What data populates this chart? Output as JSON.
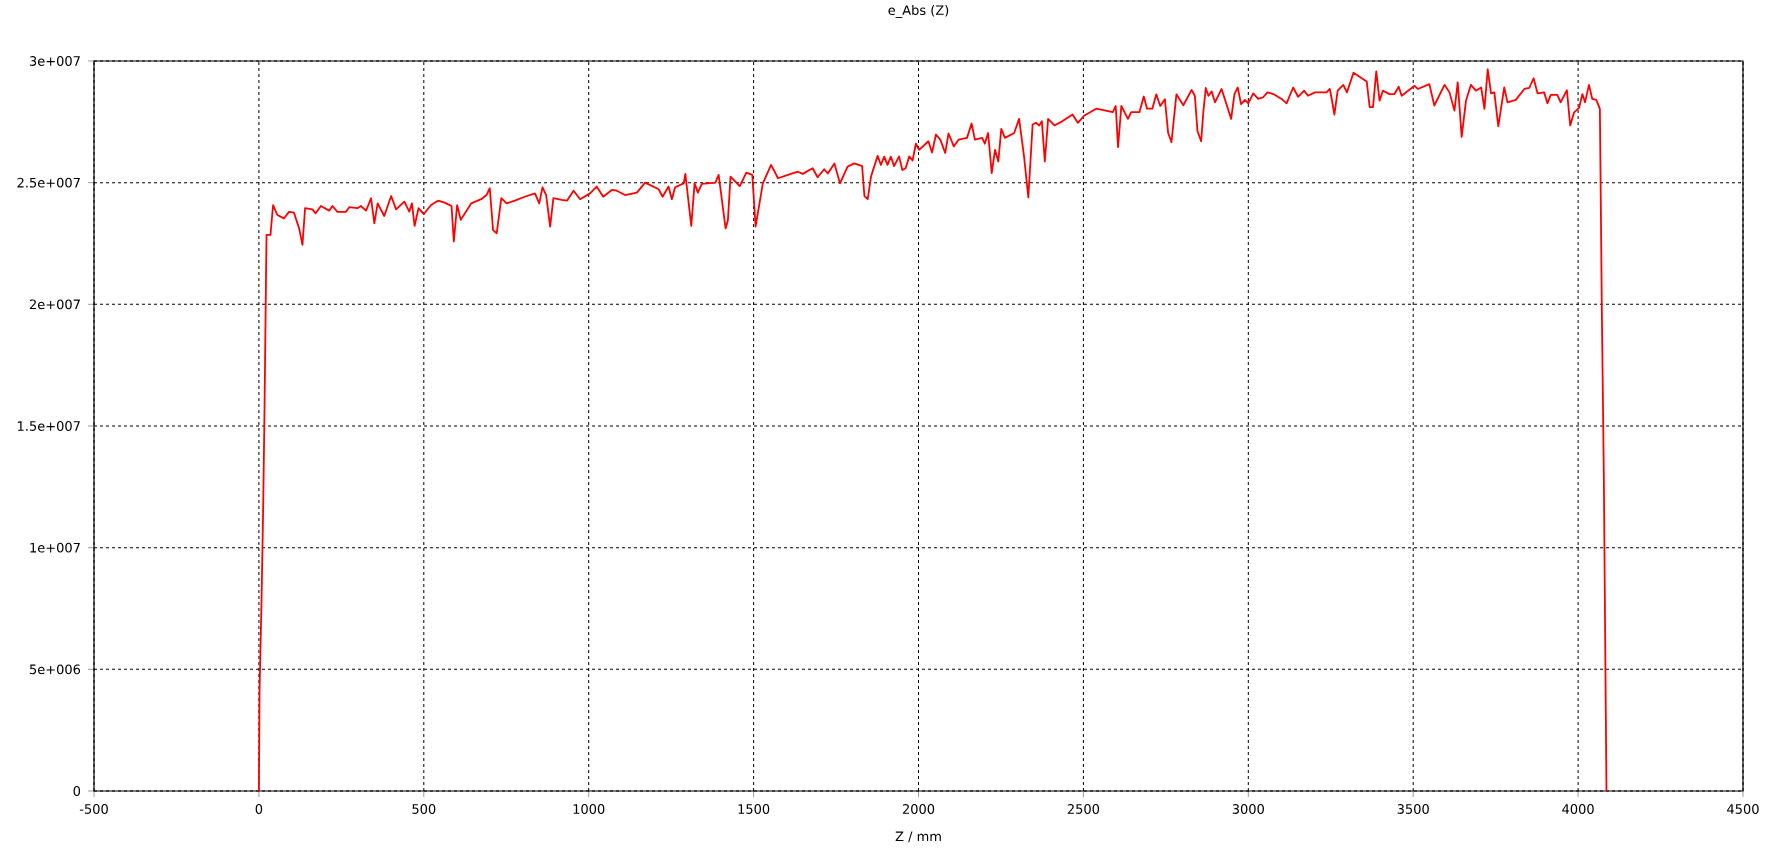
{
  "chart_data": {
    "type": "line",
    "title": "e_Abs (Z)",
    "xlabel": "Z / mm",
    "x": [
      0,
      2,
      8,
      13,
      17,
      21,
      23,
      35,
      43,
      56,
      76,
      91,
      106,
      122,
      132,
      140,
      162,
      172,
      188,
      213,
      223,
      238,
      264,
      274,
      299,
      309,
      325,
      340,
      350,
      360,
      380,
      401,
      416,
      441,
      456,
      464,
      472,
      484,
      500,
      522,
      543,
      563,
      584,
      591,
      601,
      612,
      644,
      674,
      690,
      700,
      710,
      721,
      735,
      751,
      776,
      806,
      837,
      850,
      860,
      871,
      883,
      893,
      918,
      934,
      954,
      974,
      1004,
      1024,
      1044,
      1070,
      1085,
      1110,
      1146,
      1171,
      1212,
      1224,
      1242,
      1252,
      1262,
      1288,
      1293,
      1311,
      1321,
      1331,
      1343,
      1384,
      1394,
      1415,
      1422,
      1430,
      1458,
      1478,
      1496,
      1506,
      1528,
      1553,
      1574,
      1604,
      1634,
      1649,
      1679,
      1694,
      1714,
      1725,
      1745,
      1762,
      1785,
      1805,
      1829,
      1836,
      1846,
      1856,
      1876,
      1886,
      1896,
      1906,
      1916,
      1926,
      1941,
      1951,
      1961,
      1972,
      1982,
      1992,
      2002,
      2030,
      2041,
      2053,
      2066,
      2081,
      2091,
      2107,
      2122,
      2147,
      2161,
      2171,
      2193,
      2201,
      2211,
      2222,
      2232,
      2242,
      2251,
      2262,
      2290,
      2305,
      2320,
      2333,
      2346,
      2356,
      2366,
      2374,
      2383,
      2393,
      2412,
      2437,
      2467,
      2483,
      2503,
      2539,
      2589,
      2598,
      2605,
      2615,
      2635,
      2645,
      2670,
      2683,
      2693,
      2709,
      2721,
      2733,
      2747,
      2757,
      2767,
      2782,
      2803,
      2828,
      2838,
      2846,
      2857,
      2864,
      2871,
      2879,
      2889,
      2899,
      2919,
      2948,
      2958,
      2968,
      2978,
      2990,
      3000,
      3015,
      3030,
      3045,
      3058,
      3076,
      3101,
      3116,
      3136,
      3151,
      3169,
      3181,
      3202,
      3237,
      3247,
      3252,
      3261,
      3271,
      3288,
      3299,
      3319,
      3344,
      3359,
      3368,
      3378,
      3388,
      3398,
      3408,
      3428,
      3443,
      3456,
      3465,
      3504,
      3514,
      3549,
      3564,
      3595,
      3610,
      3625,
      3635,
      3647,
      3660,
      3675,
      3690,
      3706,
      3716,
      3726,
      3736,
      3746,
      3758,
      3776,
      3786,
      3811,
      3837,
      3852,
      3865,
      3877,
      3897,
      3907,
      3917,
      3937,
      3947,
      3966,
      3976,
      3988,
      4003,
      4013,
      4021,
      4033,
      4043,
      4055,
      4066,
      4068,
      4072,
      4078,
      4082,
      4086
    ],
    "values": [
      0,
      4200000.0,
      7850000.0,
      11700000.0,
      15700000.0,
      20500000.0,
      22850000.0,
      22850000.0,
      24080000.0,
      23670000.0,
      23530000.0,
      23800000.0,
      23770000.0,
      23120000.0,
      22440000.0,
      23950000.0,
      23900000.0,
      23740000.0,
      24040000.0,
      23850000.0,
      24040000.0,
      23800000.0,
      23800000.0,
      23990000.0,
      23950000.0,
      24040000.0,
      23850000.0,
      24360000.0,
      23330000.0,
      24150000.0,
      23630000.0,
      24450000.0,
      23900000.0,
      24220000.0,
      23810000.0,
      24150000.0,
      23220000.0,
      23950000.0,
      23710000.0,
      24080000.0,
      24260000.0,
      24180000.0,
      24040000.0,
      22580000.0,
      24080000.0,
      23470000.0,
      24150000.0,
      24320000.0,
      24490000.0,
      24770000.0,
      23050000.0,
      22920000.0,
      24360000.0,
      24150000.0,
      24260000.0,
      24420000.0,
      24560000.0,
      24150000.0,
      24810000.0,
      24490000.0,
      23190000.0,
      24360000.0,
      24290000.0,
      24260000.0,
      24670000.0,
      24320000.0,
      24560000.0,
      24840000.0,
      24420000.0,
      24700000.0,
      24670000.0,
      24490000.0,
      24590000.0,
      25000000.0,
      24730000.0,
      24420000.0,
      24840000.0,
      24320000.0,
      24810000.0,
      24970000.0,
      25360000.0,
      23220000.0,
      24970000.0,
      24590000.0,
      24950000.0,
      25000000.0,
      25320000.0,
      23120000.0,
      23440000.0,
      25250000.0,
      24860000.0,
      25410000.0,
      25320000.0,
      23190000.0,
      24970000.0,
      25730000.0,
      25180000.0,
      25320000.0,
      25450000.0,
      25360000.0,
      25590000.0,
      25220000.0,
      25550000.0,
      25380000.0,
      25790000.0,
      24970000.0,
      25660000.0,
      25790000.0,
      25680000.0,
      24450000.0,
      24320000.0,
      25250000.0,
      26100000.0,
      25730000.0,
      26070000.0,
      25730000.0,
      26070000.0,
      25680000.0,
      26080000.0,
      25520000.0,
      25590000.0,
      26080000.0,
      25910000.0,
      26600000.0,
      26350000.0,
      26700000.0,
      26240000.0,
      26980000.0,
      26770000.0,
      26220000.0,
      27020000.0,
      26490000.0,
      26770000.0,
      26840000.0,
      27430000.0,
      26770000.0,
      26840000.0,
      26600000.0,
      27040000.0,
      25390000.0,
      26350000.0,
      25870000.0,
      27210000.0,
      26840000.0,
      27040000.0,
      27620000.0,
      26080000.0,
      24390000.0,
      27390000.0,
      27460000.0,
      27350000.0,
      27530000.0,
      25870000.0,
      27620000.0,
      27350000.0,
      27530000.0,
      27800000.0,
      27460000.0,
      27760000.0,
      28040000.0,
      27900000.0,
      28150000.0,
      26460000.0,
      28150000.0,
      27620000.0,
      27900000.0,
      27900000.0,
      28540000.0,
      28040000.0,
      28040000.0,
      28630000.0,
      28150000.0,
      28430000.0,
      27040000.0,
      26660000.0,
      28630000.0,
      28180000.0,
      28810000.0,
      28560000.0,
      27110000.0,
      26700000.0,
      27960000.0,
      28890000.0,
      28570000.0,
      28750000.0,
      28300000.0,
      28850000.0,
      27620000.0,
      28640000.0,
      28910000.0,
      28230000.0,
      28400000.0,
      28260000.0,
      28670000.0,
      28440000.0,
      28510000.0,
      28710000.0,
      28640000.0,
      28440000.0,
      28260000.0,
      28910000.0,
      28530000.0,
      28780000.0,
      28570000.0,
      28710000.0,
      28710000.0,
      28850000.0,
      28510000.0,
      27800000.0,
      28780000.0,
      29020000.0,
      28710000.0,
      29520000.0,
      29290000.0,
      29160000.0,
      28100000.0,
      28100000.0,
      29570000.0,
      28370000.0,
      28780000.0,
      28640000.0,
      28640000.0,
      28940000.0,
      28570000.0,
      28980000.0,
      28850000.0,
      29050000.0,
      28170000.0,
      29020000.0,
      28710000.0,
      27960000.0,
      29120000.0,
      26880000.0,
      28370000.0,
      29020000.0,
      28780000.0,
      28910000.0,
      28030000.0,
      29660000.0,
      28670000.0,
      28710000.0,
      27310000.0,
      28910000.0,
      28300000.0,
      28400000.0,
      28850000.0,
      28890000.0,
      29290000.0,
      28670000.0,
      28710000.0,
      28260000.0,
      28610000.0,
      28610000.0,
      28300000.0,
      28800000.0,
      27350000.0,
      27890000.0,
      28070000.0,
      28640000.0,
      28300000.0,
      29020000.0,
      28440000.0,
      28400000.0,
      28030000.0,
      25310000.0,
      19700000.0,
      13000000.0,
      6400000.0,
      0
    ],
    "color": "#ff0000",
    "line_style": "solid",
    "grid": true,
    "xlim": [
      -500,
      4500
    ],
    "ylim": [
      0,
      30000000
    ],
    "xticks": [
      -500,
      0,
      500,
      1000,
      1500,
      2000,
      2500,
      3000,
      3500,
      4000,
      4500
    ],
    "yticks": [
      0,
      {
        "value": 5000000,
        "label": "5e+006"
      },
      {
        "value": 10000000,
        "label": "1e+007"
      },
      {
        "value": 15000000,
        "label": "1.5e+007"
      },
      {
        "value": 20000000,
        "label": "2e+007"
      },
      {
        "value": 25000000,
        "label": "2.5e+007"
      },
      {
        "value": 30000000,
        "label": "3e+007"
      }
    ]
  }
}
